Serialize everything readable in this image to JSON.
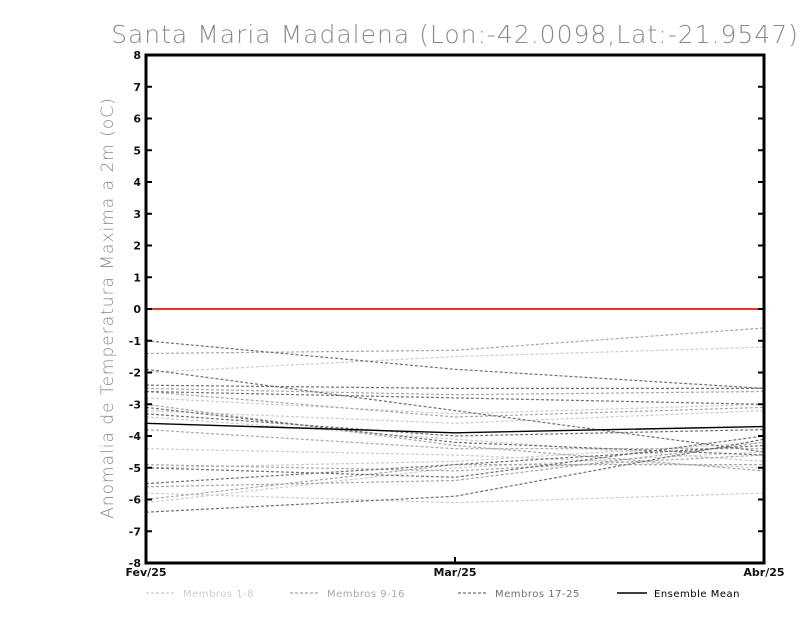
{
  "chart_data": {
    "type": "line",
    "title": "Santa Maria Madalena (Lon:-42.0098,Lat:-21.9547)",
    "xlabel": "",
    "ylabel": "Anomalia de Temperatura Maxima a 2m (oC)",
    "categories": [
      "Fev/25",
      "Mar/25",
      "Abr/25"
    ],
    "ylim": [
      -8,
      8
    ],
    "yticks": [
      -8,
      -7,
      -6,
      -5,
      -4,
      -3,
      -2,
      -1,
      0,
      1,
      2,
      3,
      4,
      5,
      6,
      7,
      8
    ],
    "ytick_labels": [
      "-8",
      "-7",
      "-6",
      "-5",
      "-4",
      "-3",
      "-2",
      "-1",
      "0",
      "1",
      "2",
      "3",
      "4",
      "5",
      "6",
      "7",
      "8"
    ],
    "zero_line": {
      "value": 0,
      "color": "#e8352b"
    },
    "groups": [
      {
        "name": "Membros 1-8",
        "color": "#cccccc"
      },
      {
        "name": "Membros 9-16",
        "color": "#a8a8a8"
      },
      {
        "name": "Membros 17-25",
        "color": "#707070"
      },
      {
        "name": "Ensemble Mean",
        "color": "#000000"
      }
    ],
    "series": [
      {
        "name": "m1",
        "group": 0,
        "values": [
          -2.0,
          -1.5,
          -1.2
        ]
      },
      {
        "name": "m2",
        "group": 0,
        "values": [
          -2.8,
          -3.3,
          -3.0
        ]
      },
      {
        "name": "m3",
        "group": 0,
        "values": [
          -3.4,
          -4.1,
          -4.8
        ]
      },
      {
        "name": "m4",
        "group": 0,
        "values": [
          -4.4,
          -4.6,
          -5.0
        ]
      },
      {
        "name": "m5",
        "group": 0,
        "values": [
          -5.0,
          -4.8,
          -4.2
        ]
      },
      {
        "name": "m6",
        "group": 0,
        "values": [
          -5.8,
          -6.1,
          -5.8
        ]
      },
      {
        "name": "m7",
        "group": 0,
        "values": [
          -6.1,
          -5.0,
          -4.5
        ]
      },
      {
        "name": "m8",
        "group": 0,
        "values": [
          -3.2,
          -3.6,
          -3.2
        ]
      },
      {
        "name": "m9",
        "group": 1,
        "values": [
          -1.4,
          -1.3,
          -0.6
        ]
      },
      {
        "name": "m10",
        "group": 1,
        "values": [
          -2.5,
          -2.7,
          -2.6
        ]
      },
      {
        "name": "m11",
        "group": 1,
        "values": [
          -3.0,
          -4.3,
          -5.1
        ]
      },
      {
        "name": "m12",
        "group": 1,
        "values": [
          -4.9,
          -5.1,
          -4.6
        ]
      },
      {
        "name": "m13",
        "group": 1,
        "values": [
          -5.6,
          -5.4,
          -4.2
        ]
      },
      {
        "name": "m14",
        "group": 1,
        "values": [
          -6.0,
          -4.9,
          -4.9
        ]
      },
      {
        "name": "m15",
        "group": 1,
        "values": [
          -2.6,
          -3.4,
          -3.1
        ]
      },
      {
        "name": "m16",
        "group": 1,
        "values": [
          -3.8,
          -4.4,
          -4.4
        ]
      },
      {
        "name": "m17",
        "group": 2,
        "values": [
          -1.0,
          -1.9,
          -2.5
        ]
      },
      {
        "name": "m18",
        "group": 2,
        "values": [
          -1.9,
          -3.2,
          -4.5
        ]
      },
      {
        "name": "m19",
        "group": 2,
        "values": [
          -2.4,
          -2.5,
          -2.5
        ]
      },
      {
        "name": "m20",
        "group": 2,
        "values": [
          -2.6,
          -2.8,
          -3.0
        ]
      },
      {
        "name": "m21",
        "group": 2,
        "values": [
          -3.1,
          -4.2,
          -4.6
        ]
      },
      {
        "name": "m22",
        "group": 2,
        "values": [
          -3.3,
          -4.0,
          -3.8
        ]
      },
      {
        "name": "m23",
        "group": 2,
        "values": [
          -5.0,
          -5.3,
          -4.0
        ]
      },
      {
        "name": "m24",
        "group": 2,
        "values": [
          -5.5,
          -4.9,
          -4.3
        ]
      },
      {
        "name": "m25",
        "group": 2,
        "values": [
          -6.4,
          -5.9,
          -4.1
        ]
      },
      {
        "name": "Ensemble Mean",
        "group": 3,
        "values": [
          -3.6,
          -3.9,
          -3.7
        ]
      }
    ]
  }
}
